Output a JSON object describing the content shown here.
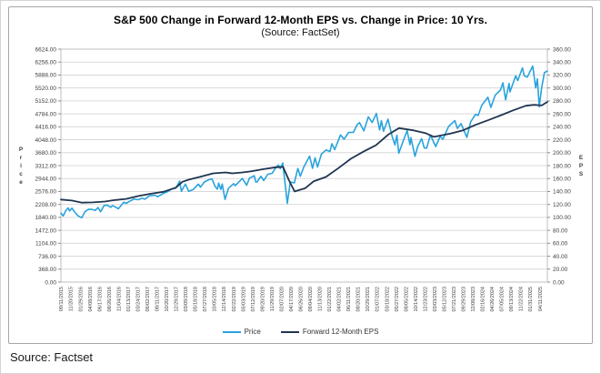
{
  "page": {
    "source_note": "Source: Factset"
  },
  "chart": {
    "title": "S&P 500 Change in Forward 12-Month EPS vs. Change in Price: 10 Yrs.",
    "subtitle": "(Source: FactSet)"
  },
  "chart_data": {
    "type": "line",
    "title": "S&P 500 Change in Forward 12-Month EPS vs. Change in Price: 10 Yrs.",
    "subtitle": "(Source: FactSet)",
    "grid": "horizontal-only",
    "legend_position": "bottom",
    "colors": {
      "grid": "#d9d9d9",
      "plot_border": "#bfbfbf",
      "tick_text": "#404040",
      "axis_title_text": "#404040"
    },
    "y_left": {
      "label": "Price",
      "min": 0,
      "max": 6624,
      "ticks": [
        0,
        368,
        736,
        1104,
        1472,
        1840,
        2208,
        2576,
        2944,
        3312,
        3680,
        4048,
        4416,
        4784,
        5152,
        5520,
        5888,
        6256,
        6624
      ]
    },
    "y_right": {
      "label": "EPS",
      "min": 0,
      "max": 360,
      "ticks": [
        0,
        20,
        40,
        60,
        80,
        100,
        120,
        140,
        160,
        180,
        200,
        220,
        240,
        260,
        280,
        300,
        320,
        340,
        360
      ]
    },
    "x_tick_labels": [
      "09/11/2015",
      "11/20/2015",
      "01/29/2016",
      "04/08/2016",
      "06/17/2016",
      "08/26/2016",
      "11/04/2016",
      "01/13/2017",
      "03/24/2017",
      "06/02/2017",
      "08/11/2017",
      "10/20/2017",
      "12/29/2017",
      "03/09/2018",
      "05/18/2018",
      "07/27/2018",
      "10/05/2018",
      "12/14/2018",
      "02/22/2019",
      "05/03/2019",
      "07/12/2019",
      "09/20/2019",
      "11/29/2019",
      "02/07/2020",
      "04/17/2020",
      "06/26/2020",
      "09/04/2020",
      "11/13/2020",
      "01/22/2021",
      "04/02/2021",
      "06/11/2021",
      "08/20/2021",
      "10/29/2021",
      "01/07/2022",
      "03/18/2022",
      "05/27/2022",
      "08/05/2022",
      "10/14/2022",
      "12/23/2022",
      "03/03/2023",
      "05/12/2023",
      "07/21/2023",
      "09/29/2023",
      "12/08/2023",
      "02/16/2024",
      "04/26/2024",
      "07/05/2024",
      "09/13/2024",
      "11/22/2024",
      "01/31/2025",
      "04/11/2025"
    ],
    "series": [
      {
        "name": "Price",
        "axis": "left",
        "color": "#29a3dd",
        "width": 1.6,
        "points": [
          [
            "2015-09-11",
            1961
          ],
          [
            "2015-09-28",
            1882
          ],
          [
            "2015-10-16",
            2033
          ],
          [
            "2015-11-03",
            2110
          ],
          [
            "2015-11-13",
            2023
          ],
          [
            "2015-12-01",
            2103
          ],
          [
            "2015-12-18",
            2005
          ],
          [
            "2016-01-15",
            1880
          ],
          [
            "2016-02-11",
            1829
          ],
          [
            "2016-03-04",
            2000
          ],
          [
            "2016-04-01",
            2073
          ],
          [
            "2016-04-29",
            2065
          ],
          [
            "2016-05-19",
            2040
          ],
          [
            "2016-06-08",
            2119
          ],
          [
            "2016-06-27",
            2001
          ],
          [
            "2016-07-22",
            2175
          ],
          [
            "2016-08-15",
            2190
          ],
          [
            "2016-09-09",
            2128
          ],
          [
            "2016-09-22",
            2177
          ],
          [
            "2016-10-14",
            2133
          ],
          [
            "2016-11-04",
            2085
          ],
          [
            "2016-12-13",
            2271
          ],
          [
            "2016-12-30",
            2239
          ],
          [
            "2017-01-25",
            2298
          ],
          [
            "2017-02-28",
            2364
          ],
          [
            "2017-03-27",
            2342
          ],
          [
            "2017-04-28",
            2384
          ],
          [
            "2017-05-17",
            2357
          ],
          [
            "2017-06-19",
            2453
          ],
          [
            "2017-07-31",
            2470
          ],
          [
            "2017-08-18",
            2426
          ],
          [
            "2017-09-29",
            2519
          ],
          [
            "2017-10-31",
            2575
          ],
          [
            "2017-11-30",
            2648
          ],
          [
            "2017-12-29",
            2674
          ],
          [
            "2018-01-26",
            2873
          ],
          [
            "2018-02-08",
            2581
          ],
          [
            "2018-03-09",
            2787
          ],
          [
            "2018-04-02",
            2582
          ],
          [
            "2018-05-03",
            2630
          ],
          [
            "2018-06-12",
            2787
          ],
          [
            "2018-06-27",
            2700
          ],
          [
            "2018-07-25",
            2846
          ],
          [
            "2018-08-29",
            2914
          ],
          [
            "2018-09-20",
            2931
          ],
          [
            "2018-10-11",
            2728
          ],
          [
            "2018-10-29",
            2641
          ],
          [
            "2018-11-07",
            2814
          ],
          [
            "2018-11-23",
            2633
          ],
          [
            "2018-12-03",
            2790
          ],
          [
            "2018-12-24",
            2351
          ],
          [
            "2019-01-18",
            2671
          ],
          [
            "2019-02-25",
            2796
          ],
          [
            "2019-03-08",
            2743
          ],
          [
            "2019-04-30",
            2946
          ],
          [
            "2019-05-31",
            2752
          ],
          [
            "2019-06-20",
            2954
          ],
          [
            "2019-07-26",
            3026
          ],
          [
            "2019-08-05",
            2845
          ],
          [
            "2019-08-15",
            2847
          ],
          [
            "2019-09-12",
            3009
          ],
          [
            "2019-10-02",
            2888
          ],
          [
            "2019-11-01",
            3067
          ],
          [
            "2019-12-03",
            3093
          ],
          [
            "2019-12-27",
            3240
          ],
          [
            "2020-01-17",
            3330
          ],
          [
            "2020-01-31",
            3226
          ],
          [
            "2020-02-19",
            3386
          ],
          [
            "2020-03-23",
            2237
          ],
          [
            "2020-04-14",
            2846
          ],
          [
            "2020-05-13",
            2820
          ],
          [
            "2020-06-08",
            3232
          ],
          [
            "2020-06-26",
            3009
          ],
          [
            "2020-07-22",
            3276
          ],
          [
            "2020-09-02",
            3581
          ],
          [
            "2020-09-23",
            3237
          ],
          [
            "2020-10-12",
            3534
          ],
          [
            "2020-10-30",
            3270
          ],
          [
            "2020-11-27",
            3638
          ],
          [
            "2020-12-31",
            3756
          ],
          [
            "2021-01-29",
            3714
          ],
          [
            "2021-02-12",
            3935
          ],
          [
            "2021-03-04",
            3768
          ],
          [
            "2021-04-16",
            4185
          ],
          [
            "2021-05-12",
            4063
          ],
          [
            "2021-06-14",
            4255
          ],
          [
            "2021-07-19",
            4258
          ],
          [
            "2021-08-16",
            4480
          ],
          [
            "2021-09-02",
            4537
          ],
          [
            "2021-10-04",
            4300
          ],
          [
            "2021-11-05",
            4698
          ],
          [
            "2021-12-03",
            4538
          ],
          [
            "2021-12-31",
            4766
          ],
          [
            "2022-01-03",
            4797
          ],
          [
            "2022-01-27",
            4327
          ],
          [
            "2022-02-09",
            4587
          ],
          [
            "2022-02-24",
            4289
          ],
          [
            "2022-03-29",
            4632
          ],
          [
            "2022-04-29",
            4132
          ],
          [
            "2022-05-19",
            3901
          ],
          [
            "2022-06-02",
            4177
          ],
          [
            "2022-06-16",
            3667
          ],
          [
            "2022-07-29",
            4130
          ],
          [
            "2022-08-16",
            4305
          ],
          [
            "2022-09-06",
            3908
          ],
          [
            "2022-09-12",
            4110
          ],
          [
            "2022-10-12",
            3577
          ],
          [
            "2022-11-01",
            3856
          ],
          [
            "2022-11-30",
            4080
          ],
          [
            "2022-12-19",
            3818
          ],
          [
            "2023-01-05",
            3808
          ],
          [
            "2023-02-02",
            4180
          ],
          [
            "2023-03-13",
            3856
          ],
          [
            "2023-04-14",
            4138
          ],
          [
            "2023-05-04",
            4061
          ],
          [
            "2023-06-15",
            4426
          ],
          [
            "2023-07-31",
            4589
          ],
          [
            "2023-08-18",
            4370
          ],
          [
            "2023-09-14",
            4505
          ],
          [
            "2023-10-27",
            4117
          ],
          [
            "2023-11-24",
            4559
          ],
          [
            "2023-12-29",
            4770
          ],
          [
            "2024-01-17",
            4739
          ],
          [
            "2024-02-12",
            5022
          ],
          [
            "2024-03-28",
            5254
          ],
          [
            "2024-04-19",
            4967
          ],
          [
            "2024-05-21",
            5321
          ],
          [
            "2024-06-28",
            5460
          ],
          [
            "2024-07-16",
            5667
          ],
          [
            "2024-08-05",
            5186
          ],
          [
            "2024-08-30",
            5648
          ],
          [
            "2024-09-06",
            5408
          ],
          [
            "2024-10-18",
            5865
          ],
          [
            "2024-11-01",
            5729
          ],
          [
            "2024-12-06",
            6090
          ],
          [
            "2024-12-19",
            5867
          ],
          [
            "2025-01-10",
            5827
          ],
          [
            "2025-02-19",
            6144
          ],
          [
            "2025-03-13",
            5521
          ],
          [
            "2025-03-25",
            5777
          ],
          [
            "2025-04-08",
            4983
          ],
          [
            "2025-04-25",
            5525
          ],
          [
            "2025-05-16",
            5958
          ],
          [
            "2025-06-06",
            6000
          ]
        ]
      },
      {
        "name": "Forward 12-Month EPS",
        "axis": "right",
        "color": "#1f3550",
        "width": 1.8,
        "points": [
          [
            "2015-09-11",
            127.5
          ],
          [
            "2015-11-30",
            126.0
          ],
          [
            "2016-02-12",
            122.8
          ],
          [
            "2016-04-29",
            123.2
          ],
          [
            "2016-07-29",
            124.5
          ],
          [
            "2016-09-30",
            126.5
          ],
          [
            "2016-12-30",
            128.5
          ],
          [
            "2017-03-31",
            133.0
          ],
          [
            "2017-06-30",
            136.5
          ],
          [
            "2017-09-29",
            139.5
          ],
          [
            "2017-12-29",
            146.0
          ],
          [
            "2018-02-15",
            155.0
          ],
          [
            "2018-03-29",
            158.0
          ],
          [
            "2018-06-29",
            163.0
          ],
          [
            "2018-09-28",
            168.0
          ],
          [
            "2018-12-28",
            169.5
          ],
          [
            "2019-02-15",
            168.0
          ],
          [
            "2019-04-30",
            169.5
          ],
          [
            "2019-06-28",
            171.0
          ],
          [
            "2019-09-30",
            174.5
          ],
          [
            "2019-12-31",
            177.5
          ],
          [
            "2020-02-21",
            178.0
          ],
          [
            "2020-04-03",
            158.0
          ],
          [
            "2020-05-15",
            140.0
          ],
          [
            "2020-07-31",
            145.0
          ],
          [
            "2020-09-30",
            155.5
          ],
          [
            "2020-12-31",
            162.5
          ],
          [
            "2021-03-31",
            176.0
          ],
          [
            "2021-06-30",
            190.5
          ],
          [
            "2021-09-30",
            201.5
          ],
          [
            "2021-12-31",
            211.5
          ],
          [
            "2022-03-31",
            228.0
          ],
          [
            "2022-06-17",
            238.0
          ],
          [
            "2022-09-30",
            234.5
          ],
          [
            "2022-12-30",
            230.0
          ],
          [
            "2023-02-28",
            224.5
          ],
          [
            "2023-06-30",
            229.5
          ],
          [
            "2023-09-29",
            234.5
          ],
          [
            "2023-12-29",
            243.0
          ],
          [
            "2024-03-28",
            250.0
          ],
          [
            "2024-06-28",
            257.5
          ],
          [
            "2024-09-30",
            265.5
          ],
          [
            "2024-12-31",
            272.5
          ],
          [
            "2025-02-28",
            274.0
          ],
          [
            "2025-04-25",
            273.0
          ],
          [
            "2025-06-06",
            278.5
          ]
        ]
      }
    ],
    "legend": [
      {
        "label": "Price",
        "color": "#29a3dd"
      },
      {
        "label": "Forward 12-Month EPS",
        "color": "#1f3550"
      }
    ]
  }
}
